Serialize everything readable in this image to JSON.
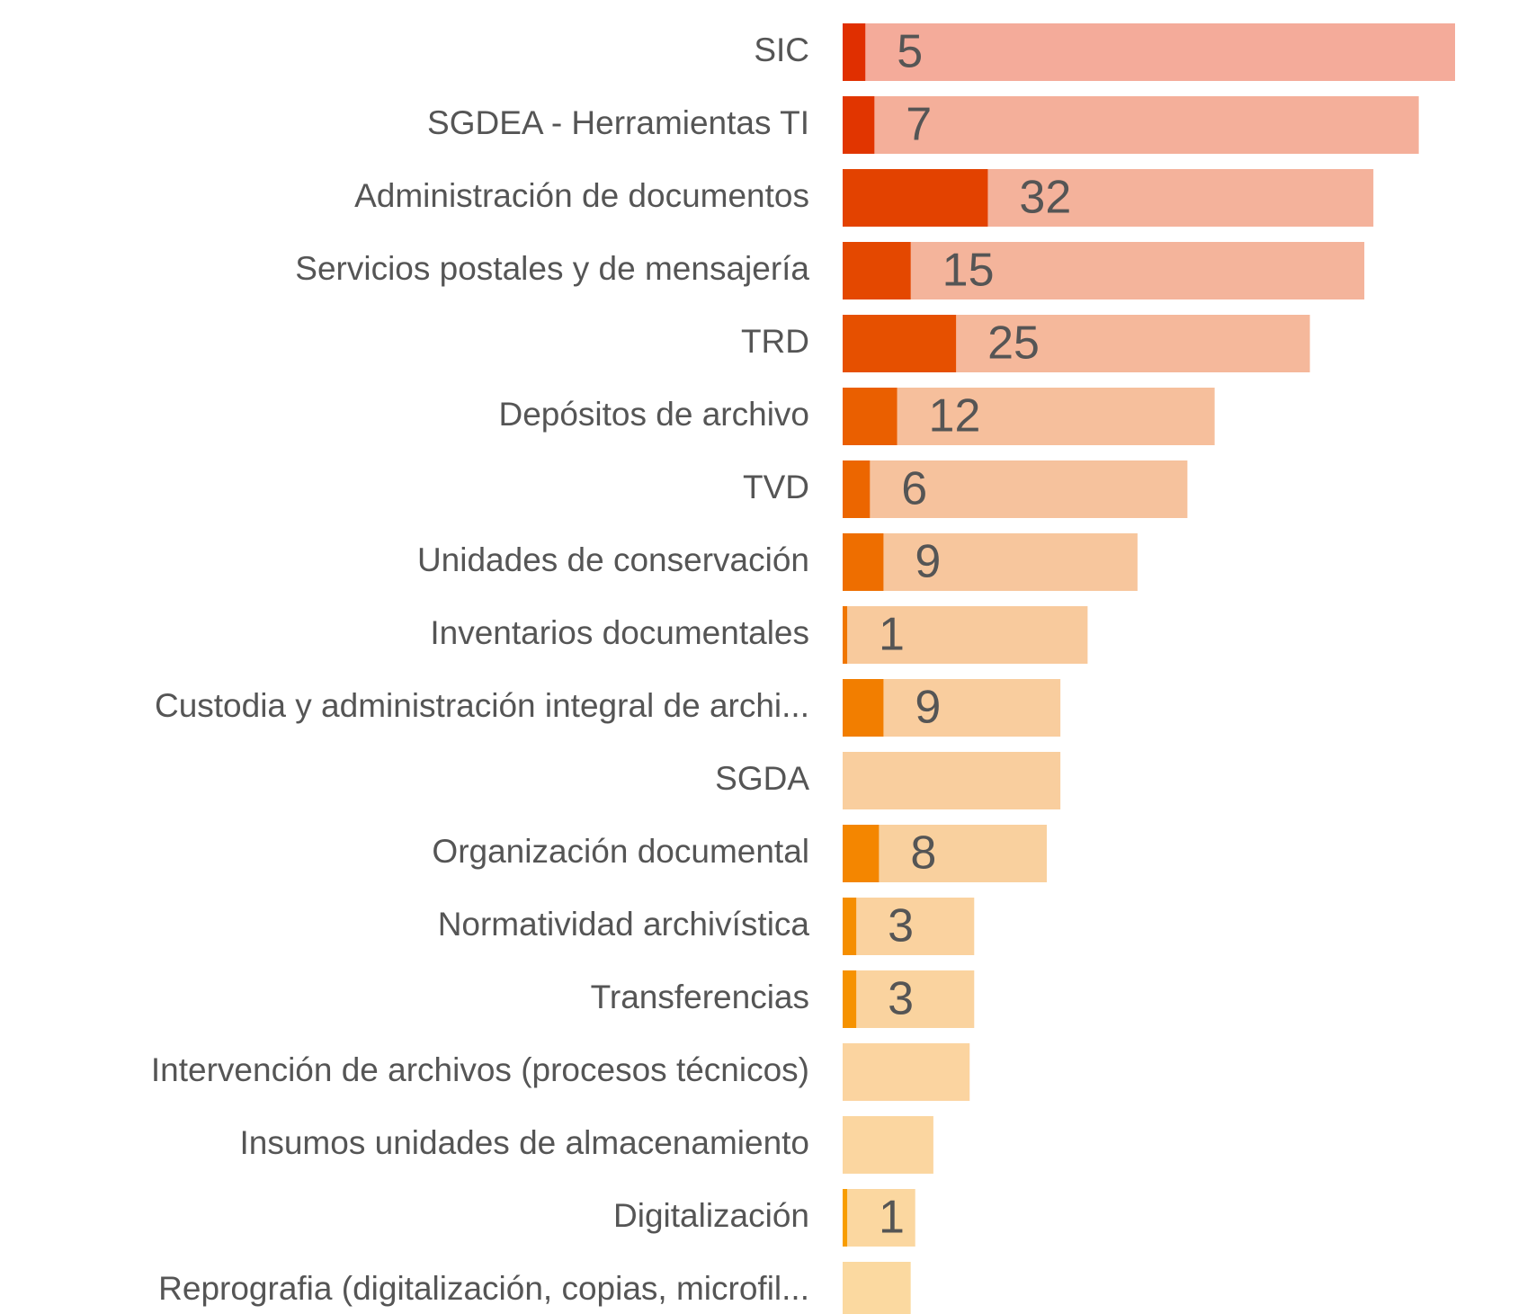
{
  "chart_data": {
    "type": "bar",
    "orientation": "horizontal",
    "categories": [
      "SIC",
      "SGDEA - Herramientas TI",
      "Administración de documentos",
      "Servicios postales y de mensajería",
      "TRD",
      "Depósitos de archivo",
      "TVD",
      "Unidades de conservación",
      "Inventarios documentales",
      "Custodia y administración integral de archi...",
      "SGDA",
      "Organización documental",
      "Normatividad archivística",
      "Transferencias",
      "Intervención de archivos (procesos técnicos)",
      "Insumos unidades de almacenamiento",
      "Digitalización",
      "Reprografia (digitalización, copias, microfil..."
    ],
    "series": [
      {
        "values": [
          135,
          127,
          117,
          115,
          103,
          82,
          76,
          65,
          54,
          48,
          48,
          45,
          29,
          29,
          28,
          20,
          16,
          15
        ],
        "colors": [
          "#f4ab9a",
          "#f4af9a",
          "#f4b29b",
          "#f4b49b",
          "#f5b89b",
          "#f6bf9c",
          "#f6c29d",
          "#f7c69d",
          "#f8ca9d",
          "#f9cd9e",
          "#f9ce9e",
          "#f9d09e",
          "#fad29f",
          "#fad39f",
          "#fbd4a0",
          "#fbd6a0",
          "#fbd7a0",
          "#fbd9a0"
        ]
      },
      {
        "values": [
          5,
          7,
          32,
          15,
          25,
          12,
          6,
          9,
          1,
          9,
          null,
          8,
          3,
          3,
          null,
          null,
          1,
          null
        ],
        "colors": [
          "#e02f00",
          "#e13500",
          "#e34200",
          "#e44800",
          "#e65000",
          "#ea5f00",
          "#ec6600",
          "#ee6e00",
          "#f07600",
          "#f27e00",
          "#f38300",
          "#f48600",
          "#f58e00",
          "#f69200",
          "#f79600",
          "#f89a00",
          "#f89d00",
          "#f9a000"
        ],
        "labels": true
      }
    ],
    "xlim": [
      0,
      135
    ]
  }
}
